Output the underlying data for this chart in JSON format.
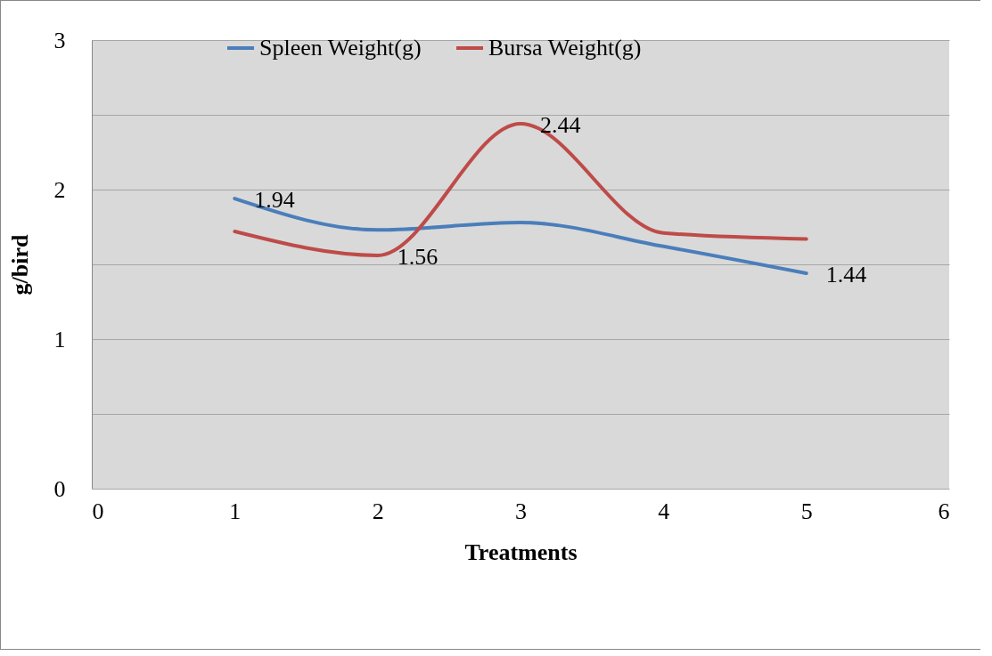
{
  "chart_data": {
    "type": "line",
    "xlabel": "Treatments",
    "ylabel": "g/bird",
    "x": [
      1,
      2,
      3,
      4,
      5
    ],
    "series": [
      {
        "name": "Spleen Weight(g)",
        "color": "#4a7ebb",
        "values": [
          1.94,
          1.73,
          1.78,
          1.62,
          1.44
        ],
        "value_labels": [
          "1.94",
          null,
          null,
          null,
          "1.44"
        ]
      },
      {
        "name": "Bursa Weight(g)",
        "color": "#be4b48",
        "values": [
          1.72,
          1.56,
          2.44,
          1.71,
          1.67
        ],
        "value_labels": [
          null,
          "1.56",
          "2.44",
          null,
          null
        ]
      }
    ],
    "xlim": [
      0,
      6
    ],
    "xticks": [
      0,
      1,
      2,
      3,
      4,
      5,
      6
    ],
    "ylim": [
      0,
      3
    ],
    "yticks": [
      0,
      {
        "value": 0.5,
        "label": null
      },
      1,
      {
        "value": 1.5,
        "label": null
      },
      2,
      {
        "value": 2.5,
        "label": null
      },
      3
    ],
    "grid": "y",
    "legend": "top",
    "marker": "none",
    "line_style": "solid"
  }
}
